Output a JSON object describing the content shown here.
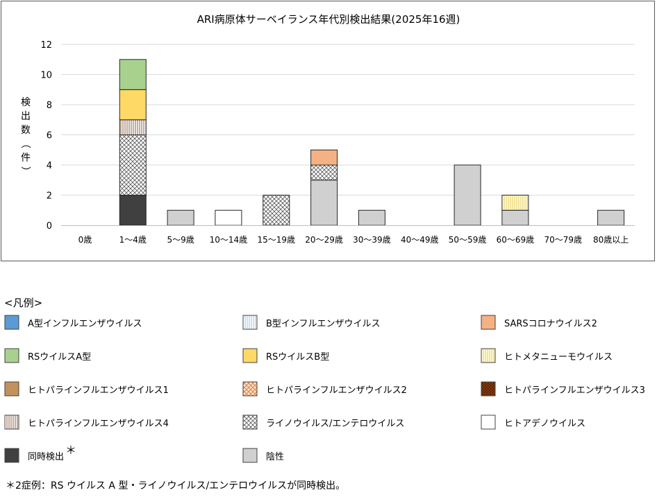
{
  "chart_data": {
    "type": "bar",
    "stacked": true,
    "title": "ARI病原体サーベイランス年代別検出結果(2025年16週)",
    "ylabel": "検出数（件）",
    "xlabel": "",
    "ylim": [
      0,
      12
    ],
    "yticks": [
      0,
      2,
      4,
      6,
      8,
      10,
      12
    ],
    "grid": true,
    "categories": [
      "0歳",
      "1～4歳",
      "5～9歳",
      "10～14歳",
      "15～19歳",
      "20～29歳",
      "30～39歳",
      "40～49歳",
      "50～59歳",
      "60～69歳",
      "70～79歳",
      "80歳以上"
    ],
    "series": [
      {
        "name": "同時検出",
        "key": "simul",
        "values": [
          0,
          2,
          0,
          0,
          0,
          0,
          0,
          0,
          0,
          0,
          0,
          0
        ]
      },
      {
        "name": "陰性",
        "key": "neg",
        "values": [
          0,
          0,
          1,
          0,
          0,
          3,
          1,
          0,
          4,
          1,
          0,
          1
        ]
      },
      {
        "name": "ライノウイルス/エンテロウイルス",
        "key": "rhino",
        "values": [
          0,
          4,
          0,
          0,
          2,
          1,
          0,
          0,
          0,
          0,
          0,
          0
        ]
      },
      {
        "name": "ヒトアデノウイルス",
        "key": "adeno",
        "values": [
          0,
          0,
          0,
          1,
          0,
          0,
          0,
          0,
          0,
          0,
          0,
          0
        ]
      },
      {
        "name": "ヒトパラインフルエンザウイルス4",
        "key": "hpiv4",
        "values": [
          0,
          1,
          0,
          0,
          0,
          0,
          0,
          0,
          0,
          0,
          0,
          0
        ]
      },
      {
        "name": "ヒトメタニューモウイルス",
        "key": "hmpv",
        "values": [
          0,
          0,
          0,
          0,
          0,
          0,
          0,
          0,
          0,
          1,
          0,
          0
        ]
      },
      {
        "name": "SARSコロナウイルス2",
        "key": "sars",
        "values": [
          0,
          0,
          0,
          0,
          0,
          1,
          0,
          0,
          0,
          0,
          0,
          0
        ]
      },
      {
        "name": "RSウイルスB型",
        "key": "rsb",
        "values": [
          0,
          2,
          0,
          0,
          0,
          0,
          0,
          0,
          0,
          0,
          0,
          0
        ]
      },
      {
        "name": "RSウイルスA型",
        "key": "rsa",
        "values": [
          0,
          2,
          0,
          0,
          0,
          0,
          0,
          0,
          0,
          0,
          0,
          0
        ]
      }
    ]
  },
  "legend": {
    "title": "<凡例>",
    "items": [
      {
        "label": "A型インフルエンザウイルス",
        "fill": "solid",
        "color": "#5b9bd5"
      },
      {
        "label": "B型インフルエンザウイルス",
        "fill": "vlines-blue",
        "color": "#9dc3e6"
      },
      {
        "label": "SARSコロナウイルス2",
        "fill": "solid",
        "color": "#f4b183"
      },
      {
        "label": "RSウイルスA型",
        "fill": "solid",
        "color": "#a9d18e"
      },
      {
        "label": "RSウイルスB型",
        "fill": "solid",
        "color": "#ffd966"
      },
      {
        "label": "ヒトメタニューモウイルス",
        "fill": "vlines-yellow",
        "color": "#fff2a8"
      },
      {
        "label": "ヒトパラインフルエンザウイルス1",
        "fill": "solid",
        "color": "#c5915a"
      },
      {
        "label": "ヒトパラインフルエンザウイルス2",
        "fill": "check-orange",
        "color": "#f4b183"
      },
      {
        "label": "ヒトパラインフルエンザウイルス3",
        "fill": "check-brown",
        "color": "#843c0c"
      },
      {
        "label": "ヒトパラインフルエンザウイルス4",
        "fill": "vlines-brown",
        "color": "#8b5a3c"
      },
      {
        "label": "ライノウイルス/エンテロウイルス",
        "fill": "crosshatch",
        "color": "#404040"
      },
      {
        "label": "ヒトアデノウイルス",
        "fill": "white",
        "color": "#ffffff"
      },
      {
        "label": "同時検出",
        "fill": "solid",
        "color": "#404040"
      },
      {
        "label": "陰性",
        "fill": "solid",
        "color": "#d0d0d0"
      }
    ],
    "asterisk": "＊"
  },
  "footnote": "＊2症例：RS ウイルス A 型・ライノウイルス/エンテロウイルスが同時検出。"
}
